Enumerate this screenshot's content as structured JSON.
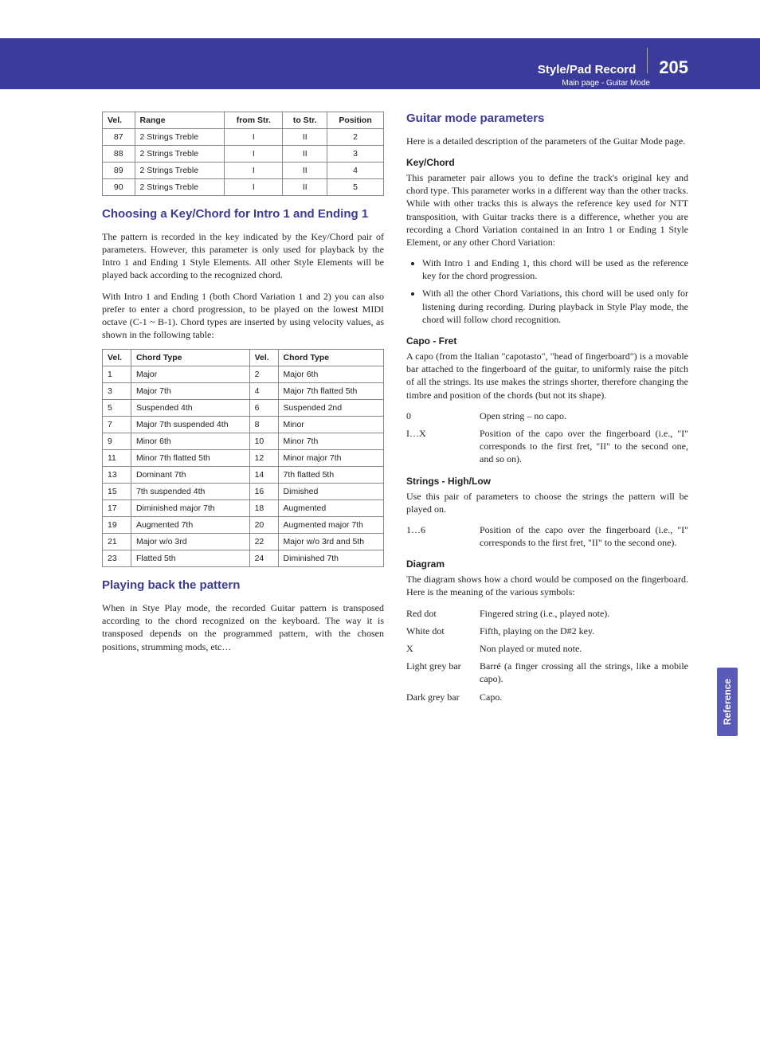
{
  "header": {
    "title": "Style/Pad Record",
    "subtitle": "Main page - Guitar Mode",
    "page": "205"
  },
  "sideTab": "Reference",
  "left": {
    "table1": {
      "headers": [
        "Vel.",
        "Range",
        "from Str.",
        "to Str.",
        "Position"
      ],
      "rows": [
        [
          "87",
          "2 Strings Treble",
          "I",
          "II",
          "2"
        ],
        [
          "88",
          "2 Strings Treble",
          "I",
          "II",
          "3"
        ],
        [
          "89",
          "2 Strings Treble",
          "I",
          "II",
          "4"
        ],
        [
          "90",
          "2 Strings Treble",
          "I",
          "II",
          "5"
        ]
      ]
    },
    "h_choosing": "Choosing a Key/Chord for Intro 1 and Ending 1",
    "p_choosing1": "The pattern is recorded in the key indicated by the Key/Chord pair of parameters. However, this parameter is only used for playback by the Intro 1 and Ending 1 Style Elements. All other Style Elements will be played back according to the recognized chord.",
    "p_choosing2": "With Intro 1 and Ending 1 (both Chord Variation 1 and 2) you can also prefer to enter a chord progression, to be played on the lowest MIDI octave (C-1 ~ B-1). Chord types are inserted by using velocity values, as shown in the following table:",
    "table2": {
      "headers": [
        "Vel.",
        "Chord Type",
        "Vel.",
        "Chord Type"
      ],
      "rows": [
        [
          "1",
          "Major",
          "2",
          "Major 6th"
        ],
        [
          "3",
          "Major 7th",
          "4",
          "Major 7th flatted 5th"
        ],
        [
          "5",
          "Suspended 4th",
          "6",
          "Suspended 2nd"
        ],
        [
          "7",
          "Major 7th suspended 4th",
          "8",
          "Minor"
        ],
        [
          "9",
          "Minor 6th",
          "10",
          "Minor 7th"
        ],
        [
          "11",
          "Minor 7th flatted 5th",
          "12",
          "Minor major 7th"
        ],
        [
          "13",
          "Dominant 7th",
          "14",
          "7th flatted 5th"
        ],
        [
          "15",
          "7th suspended 4th",
          "16",
          "Dimished"
        ],
        [
          "17",
          "Diminished major 7th",
          "18",
          "Augmented"
        ],
        [
          "19",
          "Augmented 7th",
          "20",
          "Augmented major 7th"
        ],
        [
          "21",
          "Major w/o 3rd",
          "22",
          "Major w/o 3rd and 5th"
        ],
        [
          "23",
          "Flatted 5th",
          "24",
          "Diminished 7th"
        ]
      ]
    },
    "h_playing": "Playing back the pattern",
    "p_playing": "When in Stye Play mode, the recorded Guitar pattern is transposed according to the chord recognized on the keyboard. The way it is transposed depends on the programmed pattern, with the chosen positions, strumming mods, etc…"
  },
  "right": {
    "h_params": "Guitar mode parameters",
    "p_intro": "Here is a detailed description of the parameters of the Guitar Mode page.",
    "h_keychord": "Key/Chord",
    "p_keychord": "This parameter pair allows you to define the track's original key and chord type. This parameter works in a different way than the other tracks. While with other tracks this is always the reference key used for NTT transposition, with Guitar tracks there is a difference, whether you are recording a Chord Variation contained in an Intro 1 or Ending 1 Style Element, or any other Chord Variation:",
    "bullets": [
      "With Intro 1 and Ending 1, this chord will be used as the reference key for the chord progression.",
      "With all the other Chord Variations, this chord will be used only for listening during recording. During playback in Style Play mode, the chord will follow chord recognition."
    ],
    "h_capo": "Capo - Fret",
    "p_capo": "A capo (from the Italian \"capotasto\", \"head of fingerboard\") is a movable bar attached to the fingerboard of the guitar, to uniformly raise the pitch of all the strings. Its use makes the strings shorter, therefore changing the timbre and position of the chords (but not its shape).",
    "capo_defs": [
      {
        "term": "0",
        "desc": "Open string – no capo."
      },
      {
        "term": "I…X",
        "desc": "Position of the capo over the fingerboard (i.e., \"I\" corresponds to the first fret, \"II\" to the second one, and so on)."
      }
    ],
    "h_strings": "Strings - High/Low",
    "p_strings": "Use this pair of parameters to choose the strings the pattern will be played on.",
    "strings_defs": [
      {
        "term": "1…6",
        "desc": "Position of the capo over the fingerboard (i.e., \"I\" corresponds to the first fret, \"II\" to the second one)."
      }
    ],
    "h_diagram": "Diagram",
    "p_diagram": "The diagram shows how a chord would be composed on the fingerboard. Here is the meaning of the various symbols:",
    "diagram_defs": [
      {
        "term": "Red dot",
        "desc": "Fingered string (i.e., played note)."
      },
      {
        "term": "White dot",
        "desc": "Fifth, playing on the D#2 key."
      },
      {
        "term": "X",
        "desc": "Non played or muted note."
      },
      {
        "term": "Light grey bar",
        "desc": "Barré (a finger crossing all the strings, like a mobile capo)."
      },
      {
        "term": "Dark grey bar",
        "desc": "Capo."
      }
    ]
  }
}
